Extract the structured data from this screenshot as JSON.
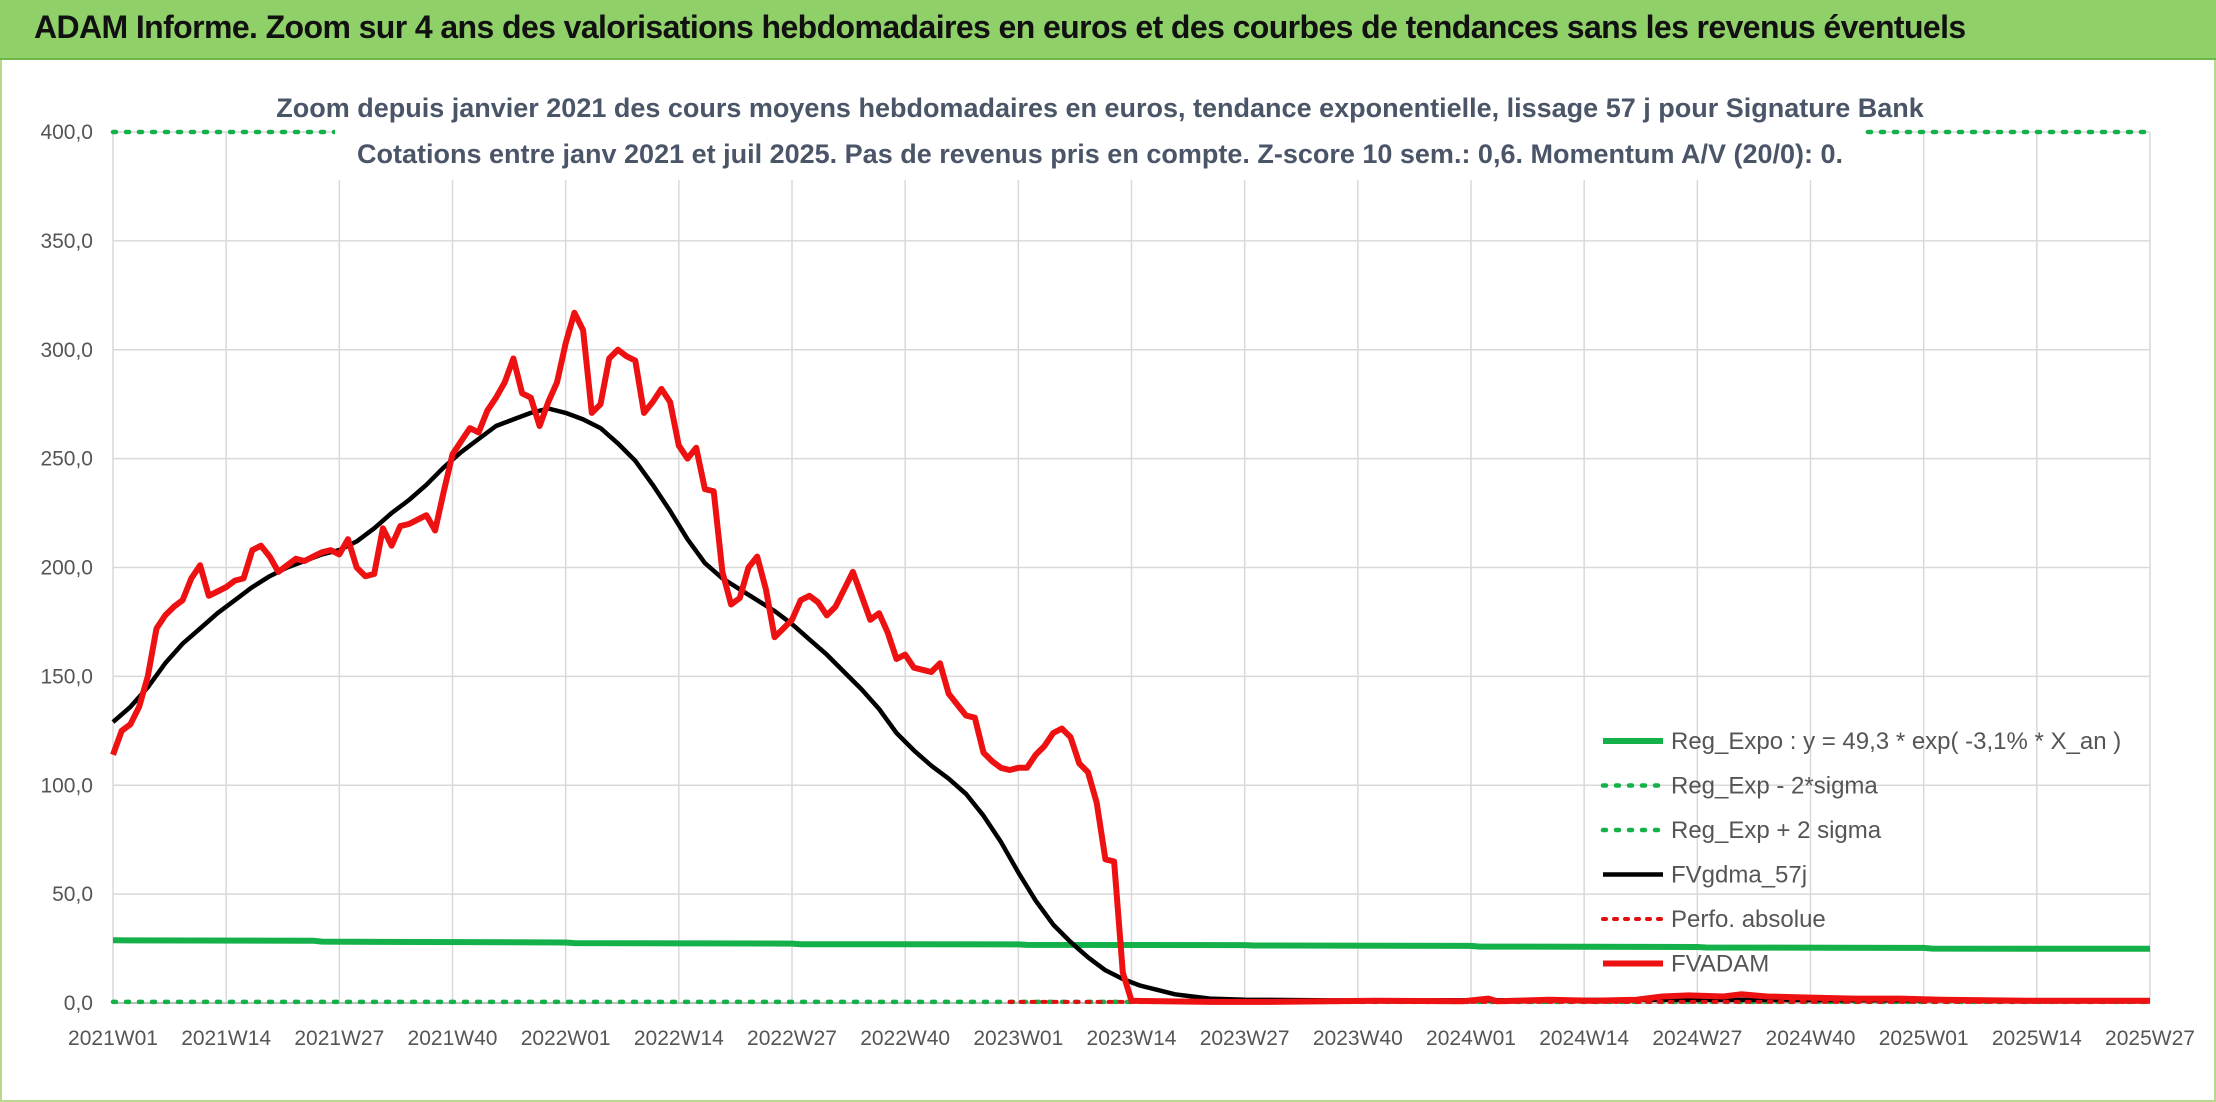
{
  "banner": {
    "title": "ADAM Informe. Zoom sur 4 ans des valorisations hebdomadaires en euros et des courbes de tendances sans les revenus éventuels"
  },
  "colors": {
    "banner_bg": "#8fd168",
    "reg_expo": "#14b04a",
    "sigma": "#14b04a",
    "fvgdma": "#000000",
    "perfo": "#e01010",
    "fvadam": "#ee1111",
    "grid": "#d9d9d9"
  },
  "chart_data": {
    "type": "line",
    "title_line1": "Zoom depuis janvier 2021 des cours moyens hebdomadaires en euros, tendance exponentielle, lissage 57 j pour Signature Bank",
    "title_line2": "Cotations entre janv 2021 et juil 2025. Pas de revenus pris en compte. Z-score 10 sem.: 0,6. Momentum A/V (20/0): 0.",
    "x_tick_labels": [
      "2021W01",
      "2021W14",
      "2021W27",
      "2021W40",
      "2022W01",
      "2022W14",
      "2022W27",
      "2022W40",
      "2023W01",
      "2023W14",
      "2023W27",
      "2023W40",
      "2024W01",
      "2024W14",
      "2024W27",
      "2024W40",
      "2025W01",
      "2025W14",
      "2025W27"
    ],
    "x_range_weeks": [
      0,
      234
    ],
    "ylim": [
      0,
      400
    ],
    "y_tick_labels": [
      "0,0",
      "50,0",
      "100,0",
      "150,0",
      "200,0",
      "250,0",
      "300,0",
      "350,0",
      "400,0"
    ],
    "y_tick_values": [
      0,
      50,
      100,
      150,
      200,
      250,
      300,
      350,
      400
    ],
    "grid": true,
    "legend_position": "right",
    "series": [
      {
        "name": "Reg_Expo : y = 49,3 * exp( -3,1% *  X_an )",
        "style": "solid-thick",
        "points": [
          [
            0,
            28.8
          ],
          [
            23,
            28.6
          ],
          [
            24,
            28.2
          ],
          [
            52,
            27.8
          ],
          [
            53,
            27.5
          ],
          [
            78,
            27.3
          ],
          [
            79,
            27.0
          ],
          [
            104,
            26.9
          ],
          [
            105,
            26.7
          ],
          [
            130,
            26.6
          ],
          [
            131,
            26.4
          ],
          [
            156,
            26.2
          ],
          [
            157,
            25.9
          ],
          [
            182,
            25.7
          ],
          [
            183,
            25.5
          ],
          [
            208,
            25.3
          ],
          [
            209,
            25.0
          ],
          [
            234,
            24.9
          ]
        ]
      },
      {
        "name": "Reg_Exp - 2*sigma",
        "style": "dotted",
        "points": [
          [
            0,
            0.5
          ],
          [
            234,
            0.5
          ]
        ]
      },
      {
        "name": "Reg_Exp + 2 sigma",
        "style": "dotted",
        "points": [
          [
            0,
            400
          ],
          [
            234,
            400
          ]
        ]
      },
      {
        "name": "FVgdma_57j",
        "style": "solid",
        "points": [
          [
            0,
            129
          ],
          [
            2,
            136
          ],
          [
            4,
            145
          ],
          [
            6,
            156
          ],
          [
            8,
            165
          ],
          [
            10,
            172
          ],
          [
            12,
            179
          ],
          [
            14,
            185
          ],
          [
            16,
            191
          ],
          [
            18,
            196
          ],
          [
            20,
            200
          ],
          [
            22,
            203
          ],
          [
            24,
            206
          ],
          [
            26,
            208
          ],
          [
            28,
            212
          ],
          [
            30,
            218
          ],
          [
            32,
            225
          ],
          [
            34,
            231
          ],
          [
            36,
            238
          ],
          [
            38,
            246
          ],
          [
            40,
            253
          ],
          [
            42,
            259
          ],
          [
            44,
            265
          ],
          [
            46,
            268
          ],
          [
            48,
            271
          ],
          [
            50,
            273
          ],
          [
            52,
            271
          ],
          [
            54,
            268
          ],
          [
            56,
            264
          ],
          [
            58,
            257
          ],
          [
            60,
            249
          ],
          [
            62,
            238
          ],
          [
            64,
            226
          ],
          [
            66,
            213
          ],
          [
            68,
            202
          ],
          [
            70,
            195
          ],
          [
            72,
            190
          ],
          [
            74,
            185
          ],
          [
            76,
            180
          ],
          [
            78,
            174
          ],
          [
            80,
            167
          ],
          [
            82,
            160
          ],
          [
            84,
            152
          ],
          [
            86,
            144
          ],
          [
            88,
            135
          ],
          [
            90,
            124
          ],
          [
            92,
            116
          ],
          [
            94,
            109
          ],
          [
            96,
            103
          ],
          [
            98,
            96
          ],
          [
            100,
            86
          ],
          [
            102,
            74
          ],
          [
            104,
            60
          ],
          [
            106,
            47
          ],
          [
            108,
            36
          ],
          [
            110,
            28
          ],
          [
            112,
            21
          ],
          [
            114,
            15
          ],
          [
            116,
            11
          ],
          [
            118,
            8
          ],
          [
            120,
            6
          ],
          [
            122,
            4
          ],
          [
            124,
            3
          ],
          [
            126,
            2
          ],
          [
            130,
            1.5
          ],
          [
            140,
            1.2
          ],
          [
            160,
            1.3
          ],
          [
            180,
            1.5
          ],
          [
            200,
            1.3
          ],
          [
            234,
            1.0
          ]
        ]
      },
      {
        "name": "Perfo. absolue",
        "style": "dotted",
        "points": [
          [
            103,
            0.5
          ],
          [
            234,
            0.5
          ]
        ]
      },
      {
        "name": "FVADAM",
        "style": "solid-thick",
        "points": [
          [
            0,
            114
          ],
          [
            1,
            125
          ],
          [
            2,
            128
          ],
          [
            3,
            136
          ],
          [
            4,
            150
          ],
          [
            5,
            172
          ],
          [
            6,
            178
          ],
          [
            7,
            182
          ],
          [
            8,
            185
          ],
          [
            9,
            195
          ],
          [
            10,
            201
          ],
          [
            11,
            187
          ],
          [
            12,
            189
          ],
          [
            13,
            191
          ],
          [
            14,
            194
          ],
          [
            15,
            195
          ],
          [
            16,
            208
          ],
          [
            17,
            210
          ],
          [
            18,
            205
          ],
          [
            19,
            198
          ],
          [
            20,
            201
          ],
          [
            21,
            204
          ],
          [
            22,
            203
          ],
          [
            23,
            205
          ],
          [
            24,
            207
          ],
          [
            25,
            208
          ],
          [
            26,
            206
          ],
          [
            27,
            213
          ],
          [
            28,
            200
          ],
          [
            29,
            196
          ],
          [
            30,
            197
          ],
          [
            31,
            218
          ],
          [
            32,
            210
          ],
          [
            33,
            219
          ],
          [
            34,
            220
          ],
          [
            35,
            222
          ],
          [
            36,
            224
          ],
          [
            37,
            217
          ],
          [
            38,
            235
          ],
          [
            39,
            252
          ],
          [
            40,
            258
          ],
          [
            41,
            264
          ],
          [
            42,
            262
          ],
          [
            43,
            272
          ],
          [
            44,
            278
          ],
          [
            45,
            285
          ],
          [
            46,
            296
          ],
          [
            47,
            280
          ],
          [
            48,
            278
          ],
          [
            49,
            265
          ],
          [
            50,
            276
          ],
          [
            51,
            285
          ],
          [
            52,
            303
          ],
          [
            53,
            317
          ],
          [
            54,
            309
          ],
          [
            55,
            271
          ],
          [
            56,
            275
          ],
          [
            57,
            296
          ],
          [
            58,
            300
          ],
          [
            59,
            297
          ],
          [
            60,
            295
          ],
          [
            61,
            271
          ],
          [
            62,
            276
          ],
          [
            63,
            282
          ],
          [
            64,
            276
          ],
          [
            65,
            256
          ],
          [
            66,
            250
          ],
          [
            67,
            255
          ],
          [
            68,
            236
          ],
          [
            69,
            235
          ],
          [
            70,
            198
          ],
          [
            71,
            183
          ],
          [
            72,
            186
          ],
          [
            73,
            200
          ],
          [
            74,
            205
          ],
          [
            75,
            190
          ],
          [
            76,
            168
          ],
          [
            77,
            172
          ],
          [
            78,
            176
          ],
          [
            79,
            185
          ],
          [
            80,
            187
          ],
          [
            81,
            184
          ],
          [
            82,
            178
          ],
          [
            83,
            182
          ],
          [
            84,
            190
          ],
          [
            85,
            198
          ],
          [
            86,
            187
          ],
          [
            87,
            176
          ],
          [
            88,
            179
          ],
          [
            89,
            170
          ],
          [
            90,
            158
          ],
          [
            91,
            160
          ],
          [
            92,
            154
          ],
          [
            93,
            153
          ],
          [
            94,
            152
          ],
          [
            95,
            156
          ],
          [
            96,
            142
          ],
          [
            97,
            137
          ],
          [
            98,
            132
          ],
          [
            99,
            131
          ],
          [
            100,
            115
          ],
          [
            101,
            111
          ],
          [
            102,
            108
          ],
          [
            103,
            107
          ],
          [
            104,
            108
          ],
          [
            105,
            108
          ],
          [
            106,
            114
          ],
          [
            107,
            118
          ],
          [
            108,
            124
          ],
          [
            109,
            126
          ],
          [
            110,
            122
          ],
          [
            111,
            110
          ],
          [
            112,
            106
          ],
          [
            113,
            92
          ],
          [
            114,
            66
          ],
          [
            115,
            65
          ],
          [
            116,
            14
          ],
          [
            117,
            1
          ],
          [
            126,
            0.5
          ],
          [
            132,
            0.5
          ],
          [
            145,
            1
          ],
          [
            155,
            0.8
          ],
          [
            158,
            2
          ],
          [
            159,
            0.8
          ],
          [
            165,
            1.5
          ],
          [
            170,
            1
          ],
          [
            175,
            1.5
          ],
          [
            178,
            3
          ],
          [
            181,
            3.5
          ],
          [
            185,
            3
          ],
          [
            187,
            4
          ],
          [
            190,
            3
          ],
          [
            195,
            2.5
          ],
          [
            200,
            2
          ],
          [
            205,
            2
          ],
          [
            210,
            1.5
          ],
          [
            220,
            1
          ],
          [
            234,
            1
          ]
        ]
      }
    ]
  }
}
